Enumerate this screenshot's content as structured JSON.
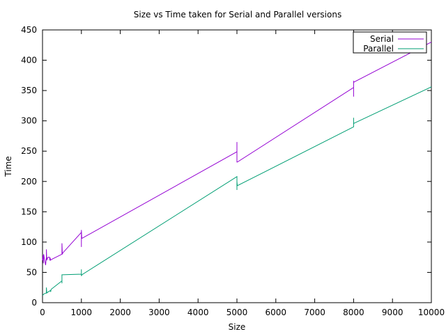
{
  "chart_data": {
    "type": "line",
    "title": "Size vs Time taken for Serial and Parallel versions",
    "xlabel": "Size",
    "ylabel": "Time",
    "xlim": [
      0,
      10000
    ],
    "ylim": [
      0,
      450
    ],
    "xticks": [
      0,
      1000,
      2000,
      3000,
      4000,
      5000,
      6000,
      7000,
      8000,
      9000,
      10000
    ],
    "yticks": [
      0,
      50,
      100,
      150,
      200,
      250,
      300,
      350,
      400,
      450
    ],
    "grid": false,
    "legend_position": "top-right",
    "series": [
      {
        "name": "Serial",
        "color": "#9400d3",
        "points": [
          [
            0,
            70
          ],
          [
            10,
            78
          ],
          [
            20,
            65
          ],
          [
            30,
            80
          ],
          [
            50,
            72
          ],
          [
            80,
            62
          ],
          [
            100,
            75
          ],
          [
            100,
            88
          ],
          [
            110,
            70
          ],
          [
            130,
            74
          ],
          [
            150,
            75
          ],
          [
            180,
            75
          ],
          [
            190,
            70
          ],
          [
            200,
            74
          ],
          [
            200,
            70
          ],
          [
            250,
            72
          ],
          [
            500,
            80
          ],
          [
            500,
            98
          ],
          [
            510,
            80
          ],
          [
            520,
            82
          ],
          [
            1000,
            116
          ],
          [
            1000,
            92
          ],
          [
            1000,
            120
          ],
          [
            1010,
            106
          ],
          [
            5000,
            249
          ],
          [
            5000,
            265
          ],
          [
            5000,
            232
          ],
          [
            5010,
            232
          ],
          [
            8000,
            355
          ],
          [
            8000,
            340
          ],
          [
            8000,
            365
          ],
          [
            8010,
            364
          ],
          [
            10000,
            430
          ]
        ]
      },
      {
        "name": "Parallel",
        "color": "#009e73",
        "points": [
          [
            0,
            12
          ],
          [
            50,
            15
          ],
          [
            100,
            16
          ],
          [
            100,
            25
          ],
          [
            110,
            16
          ],
          [
            150,
            18
          ],
          [
            200,
            20
          ],
          [
            210,
            18
          ],
          [
            220,
            22
          ],
          [
            500,
            36
          ],
          [
            500,
            32
          ],
          [
            500,
            46
          ],
          [
            510,
            46
          ],
          [
            1000,
            47
          ],
          [
            1000,
            55
          ],
          [
            1000,
            44
          ],
          [
            1010,
            46
          ],
          [
            5000,
            208
          ],
          [
            5000,
            186
          ],
          [
            5000,
            200
          ],
          [
            5010,
            193
          ],
          [
            8000,
            290
          ],
          [
            8000,
            305
          ],
          [
            8000,
            295
          ],
          [
            8010,
            296
          ],
          [
            10000,
            356
          ]
        ]
      }
    ]
  }
}
